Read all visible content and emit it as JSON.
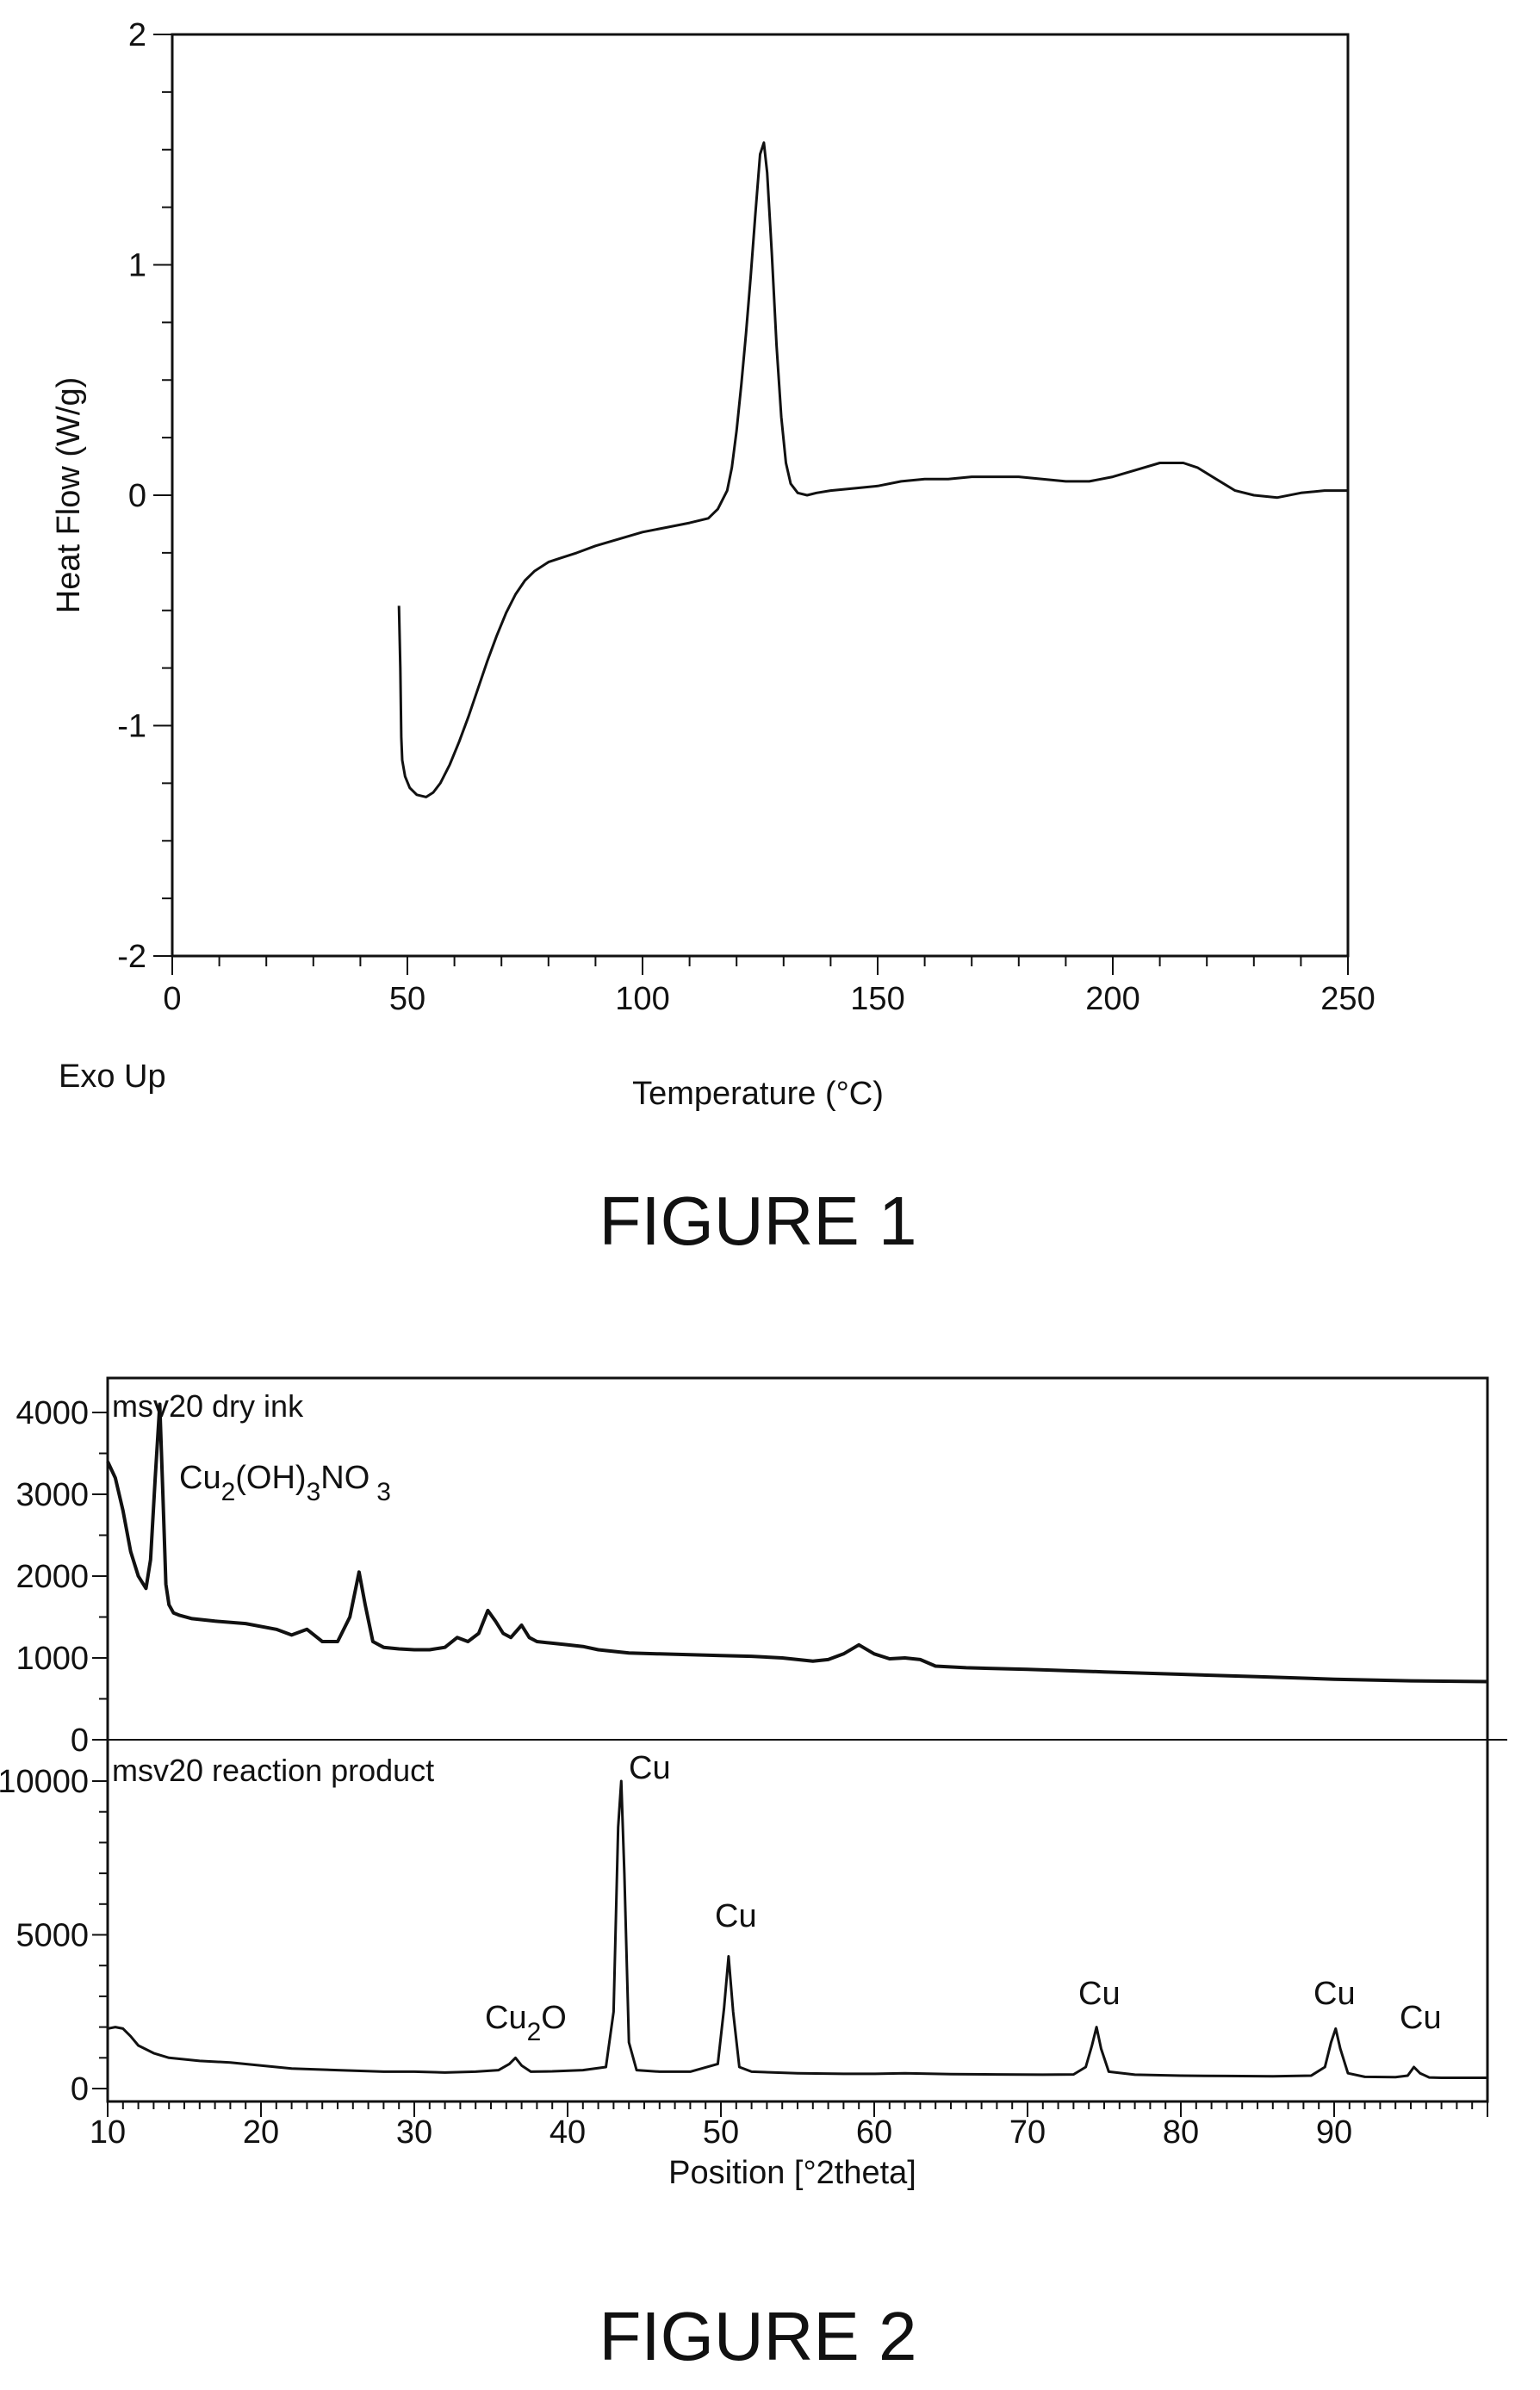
{
  "colors": {
    "ink": "#111111",
    "background": "#ffffff"
  },
  "figures": [
    {
      "caption": "FIGURE 1",
      "annotation": "Exo Up",
      "xlabel": "Temperature (°C)",
      "ylabel": "Heat Flow (W/g)",
      "xticks": [
        "0",
        "50",
        "100",
        "150",
        "200",
        "250"
      ],
      "yticks": [
        "2",
        "1",
        "0",
        "-1",
        "-2"
      ]
    },
    {
      "caption": "FIGURE 2",
      "xlabel": "Position [°2theta]",
      "xticks": [
        "10",
        "20",
        "30",
        "40",
        "50",
        "60",
        "70",
        "80",
        "90"
      ],
      "top_panel": {
        "label": "msv20 dry ink",
        "yticks": [
          "4000",
          "3000",
          "2000",
          "1000",
          "0"
        ],
        "peak_label": {
          "base": "Cu",
          "sub1": "2",
          "mid": "(OH)",
          "sub2": "3",
          "mid2": "NO",
          "sub3": "3"
        }
      },
      "bottom_panel": {
        "label": "msv20 reaction product",
        "yticks": [
          "10000",
          "5000",
          "0"
        ],
        "peak_labels": [
          {
            "text": "Cu",
            "sub": "2",
            "tail": "O"
          },
          {
            "text": "Cu"
          },
          {
            "text": "Cu"
          },
          {
            "text": "Cu"
          },
          {
            "text": "Cu"
          },
          {
            "text": "Cu"
          }
        ]
      }
    }
  ],
  "chart_data": [
    {
      "type": "line",
      "title": "",
      "xlabel": "Temperature (°C)",
      "ylabel": "Heat Flow (W/g)",
      "xlim": [
        0,
        250
      ],
      "ylim": [
        -2,
        2
      ],
      "grid": false,
      "series": [
        {
          "x": [
            48.2,
            48.5,
            48.7,
            48.9,
            49.5,
            50.5,
            52,
            54,
            55.5,
            57,
            59,
            61,
            63,
            65,
            67,
            69,
            71,
            73,
            75,
            77,
            80,
            83,
            86,
            90,
            95,
            100,
            105,
            110,
            114,
            116,
            118,
            119,
            120,
            121,
            122,
            123,
            124,
            125,
            125.8,
            126.5,
            127.5,
            128.5,
            129.5,
            130.5,
            131.5,
            133,
            135,
            137,
            140,
            145,
            150,
            155,
            160,
            165,
            170,
            175,
            180,
            185,
            190,
            195,
            200,
            205,
            210,
            215,
            218,
            222,
            226,
            230,
            235,
            240,
            245,
            250
          ],
          "y": [
            -0.48,
            -0.75,
            -1.05,
            -1.15,
            -1.22,
            -1.27,
            -1.3,
            -1.31,
            -1.29,
            -1.25,
            -1.17,
            -1.07,
            -0.96,
            -0.84,
            -0.72,
            -0.61,
            -0.51,
            -0.43,
            -0.37,
            -0.33,
            -0.29,
            -0.27,
            -0.25,
            -0.22,
            -0.19,
            -0.16,
            -0.14,
            -0.12,
            -0.1,
            -0.06,
            0.02,
            0.12,
            0.28,
            0.48,
            0.7,
            0.95,
            1.22,
            1.48,
            1.53,
            1.4,
            1.05,
            0.65,
            0.34,
            0.14,
            0.05,
            0.01,
            0.0,
            0.01,
            0.02,
            0.03,
            0.04,
            0.06,
            0.07,
            0.07,
            0.08,
            0.08,
            0.08,
            0.07,
            0.06,
            0.06,
            0.08,
            0.11,
            0.14,
            0.14,
            0.12,
            0.07,
            0.02,
            0.0,
            -0.01,
            0.01,
            0.02,
            0.02
          ]
        }
      ]
    },
    {
      "type": "line",
      "title": "",
      "xlabel": "Position [°2theta]",
      "ylabel": "",
      "xlim": [
        10,
        100
      ],
      "ylim": [
        0,
        4300
      ],
      "grid": false,
      "series": [
        {
          "name": "msv20 dry ink",
          "x": [
            10,
            10.5,
            11,
            11.5,
            12,
            12.5,
            12.8,
            13.1,
            13.4,
            13.6,
            13.8,
            14.0,
            14.3,
            14.7,
            15.5,
            17,
            19,
            21,
            22,
            23,
            24,
            25,
            25.8,
            26.4,
            26.8,
            27.3,
            28,
            29,
            30,
            31,
            32,
            32.8,
            33.5,
            34.2,
            34.8,
            35.3,
            35.8,
            36.3,
            37,
            37.5,
            38,
            39,
            40,
            41,
            42,
            43,
            44,
            46,
            48,
            50,
            52,
            54,
            56,
            57,
            58,
            59,
            60,
            61,
            62,
            63,
            64,
            66,
            70,
            75,
            80,
            85,
            90,
            95,
            100
          ],
          "values": [
            3400,
            3200,
            2800,
            2300,
            2000,
            1850,
            2200,
            3200,
            4100,
            3000,
            1900,
            1650,
            1550,
            1520,
            1480,
            1450,
            1420,
            1350,
            1280,
            1350,
            1200,
            1200,
            1500,
            2050,
            1650,
            1200,
            1130,
            1110,
            1100,
            1100,
            1130,
            1250,
            1200,
            1300,
            1580,
            1450,
            1300,
            1250,
            1400,
            1250,
            1200,
            1180,
            1160,
            1140,
            1100,
            1080,
            1060,
            1050,
            1040,
            1030,
            1020,
            1000,
            960,
            980,
            1050,
            1160,
            1050,
            990,
            1000,
            980,
            900,
            880,
            860,
            830,
            800,
            770,
            740,
            720,
            710
          ]
        }
      ],
      "panel": "top"
    },
    {
      "type": "line",
      "title": "",
      "xlabel": "Position [°2theta]",
      "ylabel": "",
      "xlim": [
        10,
        100
      ],
      "ylim": [
        0,
        10500
      ],
      "grid": false,
      "series": [
        {
          "name": "msv20 reaction product",
          "x": [
            10,
            10.5,
            11,
            11.5,
            12,
            13,
            14,
            16,
            18,
            20,
            22,
            25,
            28,
            30,
            32,
            34,
            35.5,
            36.2,
            36.6,
            37,
            37.6,
            39,
            41,
            42.5,
            43.0,
            43.3,
            43.5,
            43.7,
            44.0,
            44.5,
            46,
            48,
            49.8,
            50.2,
            50.5,
            50.8,
            51.2,
            52,
            55,
            58,
            60,
            62,
            65,
            68,
            71,
            73,
            73.8,
            74.2,
            74.5,
            74.8,
            75.3,
            77,
            80,
            83,
            86,
            88.5,
            89.4,
            89.8,
            90.1,
            90.4,
            90.9,
            92,
            94,
            94.8,
            95.2,
            95.6,
            96.2,
            97,
            100
          ],
          "values": [
            1950,
            2000,
            1950,
            1700,
            1400,
            1150,
            1000,
            900,
            850,
            750,
            650,
            600,
            550,
            550,
            520,
            550,
            600,
            800,
            1000,
            750,
            550,
            560,
            600,
            700,
            2500,
            8500,
            10000,
            7000,
            1500,
            600,
            550,
            550,
            800,
            2600,
            4300,
            2500,
            700,
            550,
            500,
            480,
            480,
            500,
            470,
            460,
            450,
            460,
            700,
            1400,
            2000,
            1300,
            550,
            450,
            420,
            410,
            400,
            420,
            700,
            1500,
            1950,
            1300,
            500,
            380,
            370,
            420,
            700,
            500,
            360,
            350,
            350
          ]
        }
      ],
      "panel": "bottom"
    }
  ]
}
